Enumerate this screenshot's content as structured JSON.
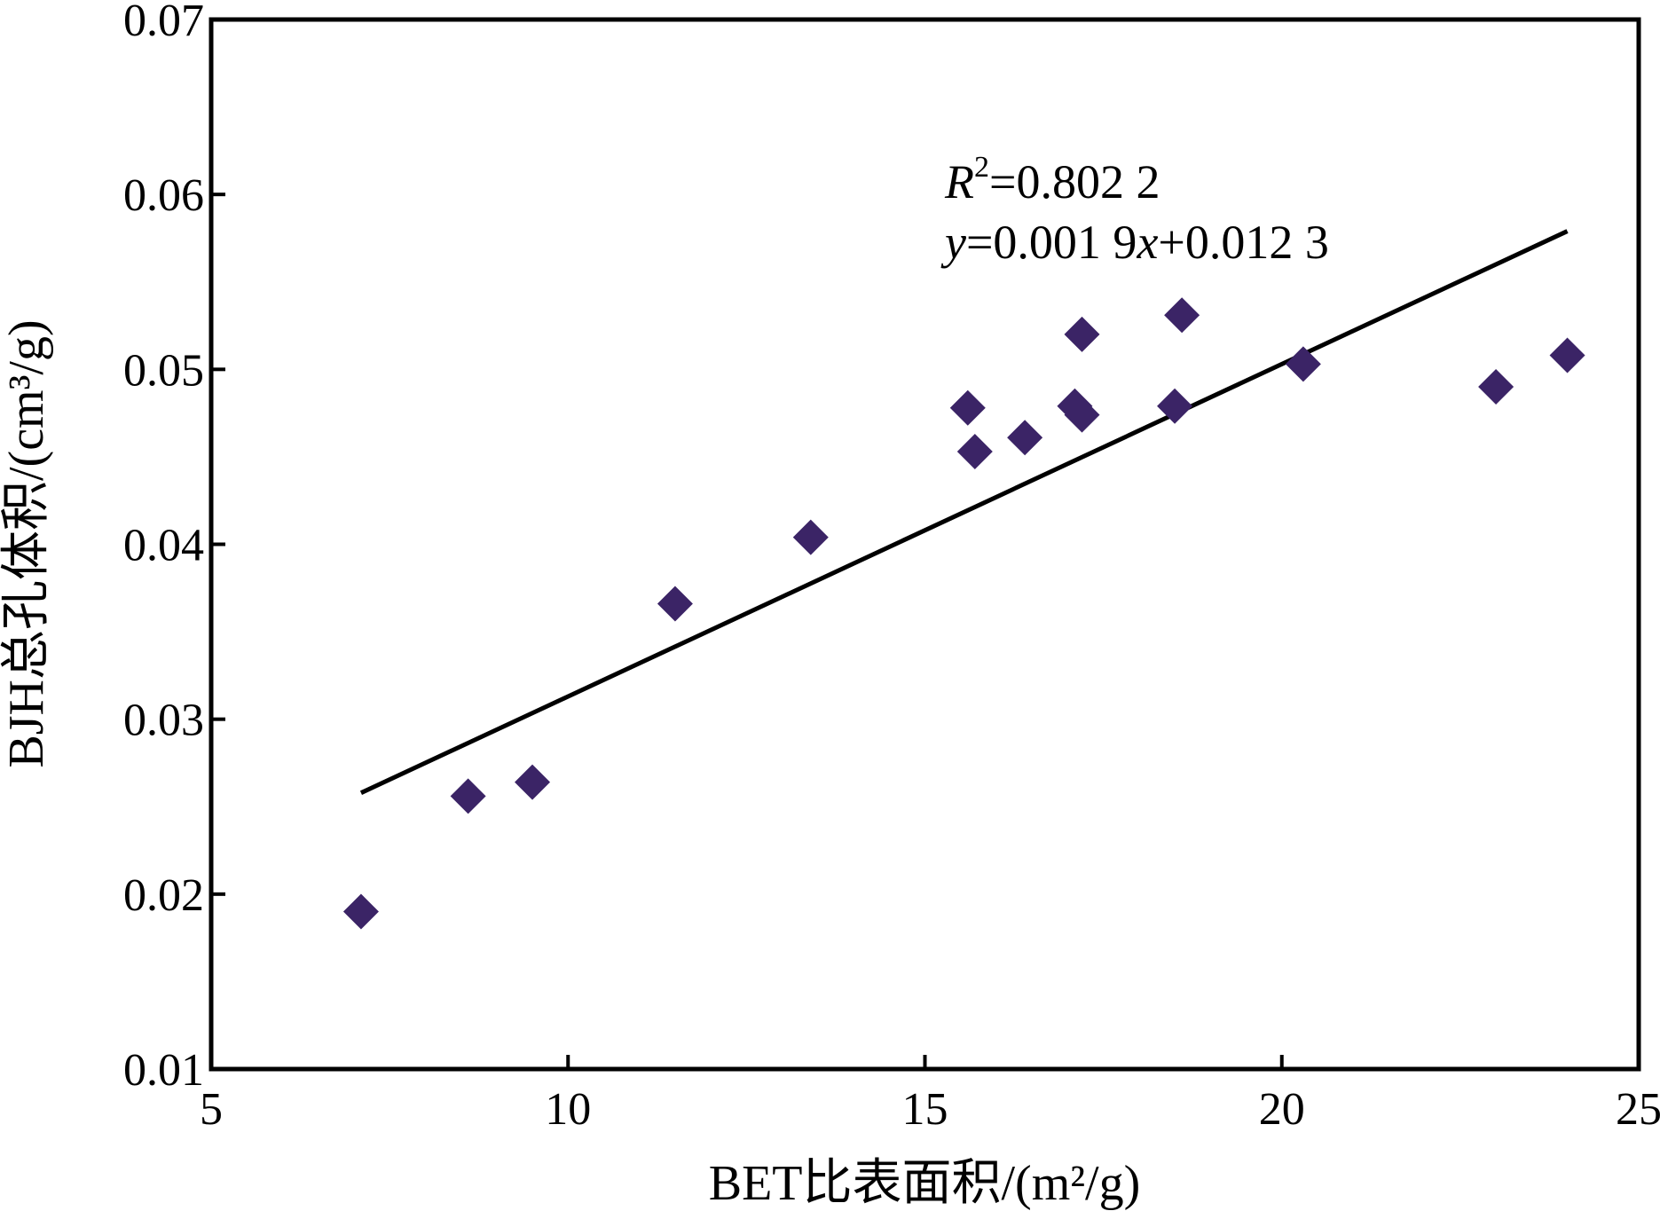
{
  "chart_data": {
    "type": "scatter",
    "title": "",
    "xlabel": "BET比表面积/(m²/g)",
    "ylabel": "BJH总孔体积/(cm³/g)",
    "xlim": [
      5,
      25
    ],
    "ylim": [
      0.01,
      0.07
    ],
    "x_ticks": [
      "5",
      "10",
      "15",
      "20",
      "25"
    ],
    "y_ticks": [
      "0.01",
      "0.02",
      "0.03",
      "0.04",
      "0.05",
      "0.06",
      "0.07"
    ],
    "grid": false,
    "legend": "none",
    "marker": "diamond",
    "marker_color": "#3b2466",
    "series": [
      {
        "points": [
          [
            7.1,
            0.019
          ],
          [
            8.6,
            0.0256
          ],
          [
            9.5,
            0.0264
          ],
          [
            11.5,
            0.0366
          ],
          [
            13.4,
            0.0404
          ],
          [
            15.6,
            0.0478
          ],
          [
            15.7,
            0.0453
          ],
          [
            16.4,
            0.0461
          ],
          [
            17.1,
            0.0479
          ],
          [
            17.2,
            0.0474
          ],
          [
            17.2,
            0.052
          ],
          [
            18.5,
            0.0479
          ],
          [
            18.6,
            0.0531
          ],
          [
            20.3,
            0.0503
          ],
          [
            23.0,
            0.049
          ],
          [
            24.0,
            0.0508
          ]
        ]
      }
    ],
    "trendline": {
      "slope": 0.0019,
      "intercept": 0.0123,
      "x_range": [
        7.1,
        24.0
      ],
      "equation_prefix": "y",
      "equation_mid": "=0.001 9",
      "equation_var": "x",
      "equation_suffix": "+0.012 3",
      "r2_symbol": "R",
      "r2_sup": "2",
      "r2_value": "=0.802 2"
    }
  }
}
